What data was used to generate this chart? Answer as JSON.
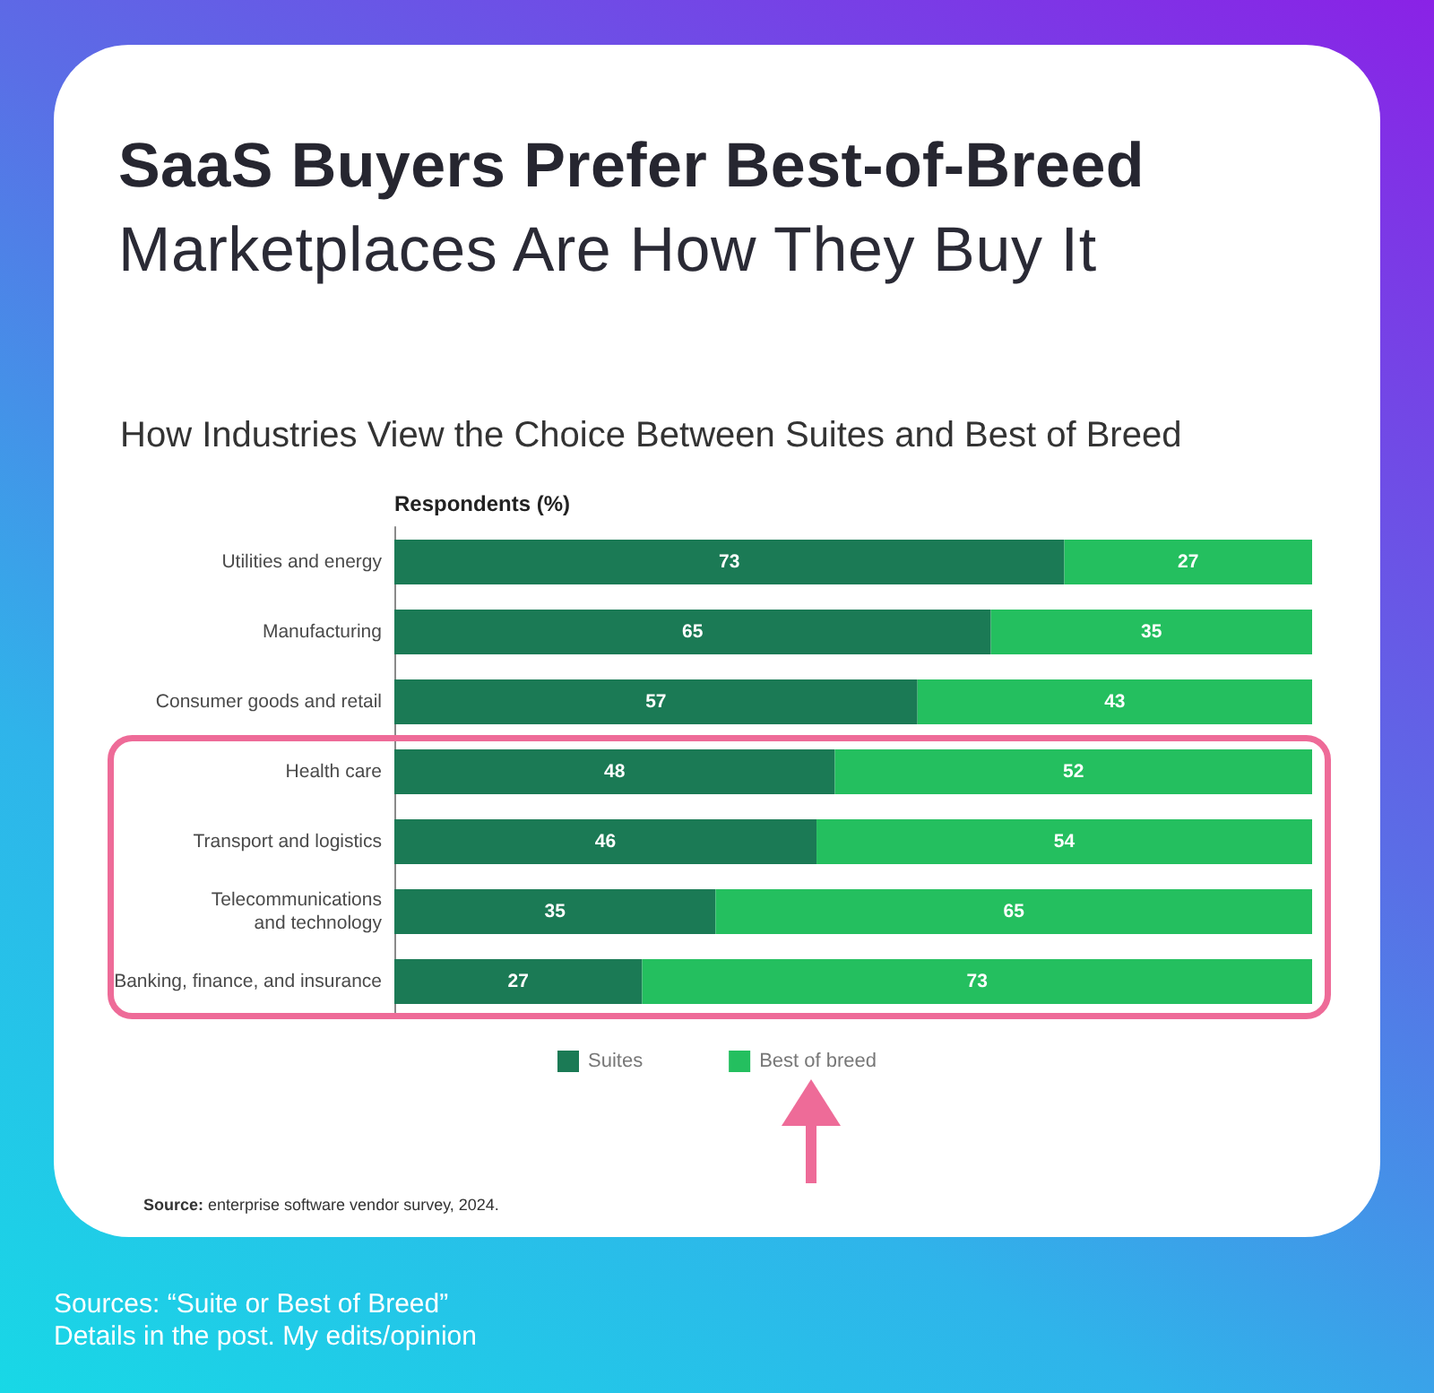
{
  "chart_data": {
    "type": "bar",
    "orientation": "horizontal",
    "stacked": true,
    "title": "SaaS Buyers Prefer Best-of-Breed",
    "subtitle": "Marketplaces Are How They Buy It",
    "xlabel": "Respondents (%)",
    "categories": [
      "Utilities and energy",
      "Manufacturing",
      "Consumer goods and retail",
      "Health care",
      "Transport and logistics",
      "Telecommunications and technology",
      "Banking, finance, and insurance"
    ],
    "series": [
      {
        "name": "Suites",
        "color": "#1b7a55",
        "values": [
          73,
          65,
          57,
          48,
          46,
          35,
          27
        ]
      },
      {
        "name": "Best of breed",
        "color": "#24bf5f",
        "values": [
          27,
          35,
          43,
          52,
          54,
          65,
          73
        ]
      }
    ],
    "data_labels": true,
    "legend": "bottom",
    "grid": false,
    "tick_labels": "y",
    "annotations": [
      "How Industries View the Choice Between Suites and Best of Breed",
      "Source: enterprise software vendor survey, 2024.",
      "Sources: “Suite or Best of Breed”",
      "Details in the post. My edits/opinion"
    ]
  }
}
